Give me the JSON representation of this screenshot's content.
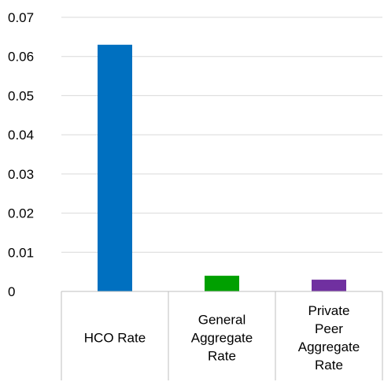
{
  "chart_data": {
    "type": "bar",
    "title": "",
    "xlabel": "",
    "ylabel": "",
    "categories": [
      "HCO Rate",
      "General Aggregate Rate",
      "Private Peer Aggregate Rate"
    ],
    "category_lines": [
      [
        "HCO Rate"
      ],
      [
        "General",
        "Aggregate",
        "Rate"
      ],
      [
        "Private",
        "Peer",
        "Aggregate",
        "Rate"
      ]
    ],
    "values": [
      0.063,
      0.004,
      0.003
    ],
    "colors": [
      "#0070c0",
      "#00a000",
      "#7030a0"
    ],
    "ylim": [
      0,
      0.07
    ],
    "yticks": [
      "0",
      "0.01",
      "0.02",
      "0.03",
      "0.04",
      "0.05",
      "0.06",
      "0.07"
    ],
    "grid": true,
    "legend": "none"
  }
}
